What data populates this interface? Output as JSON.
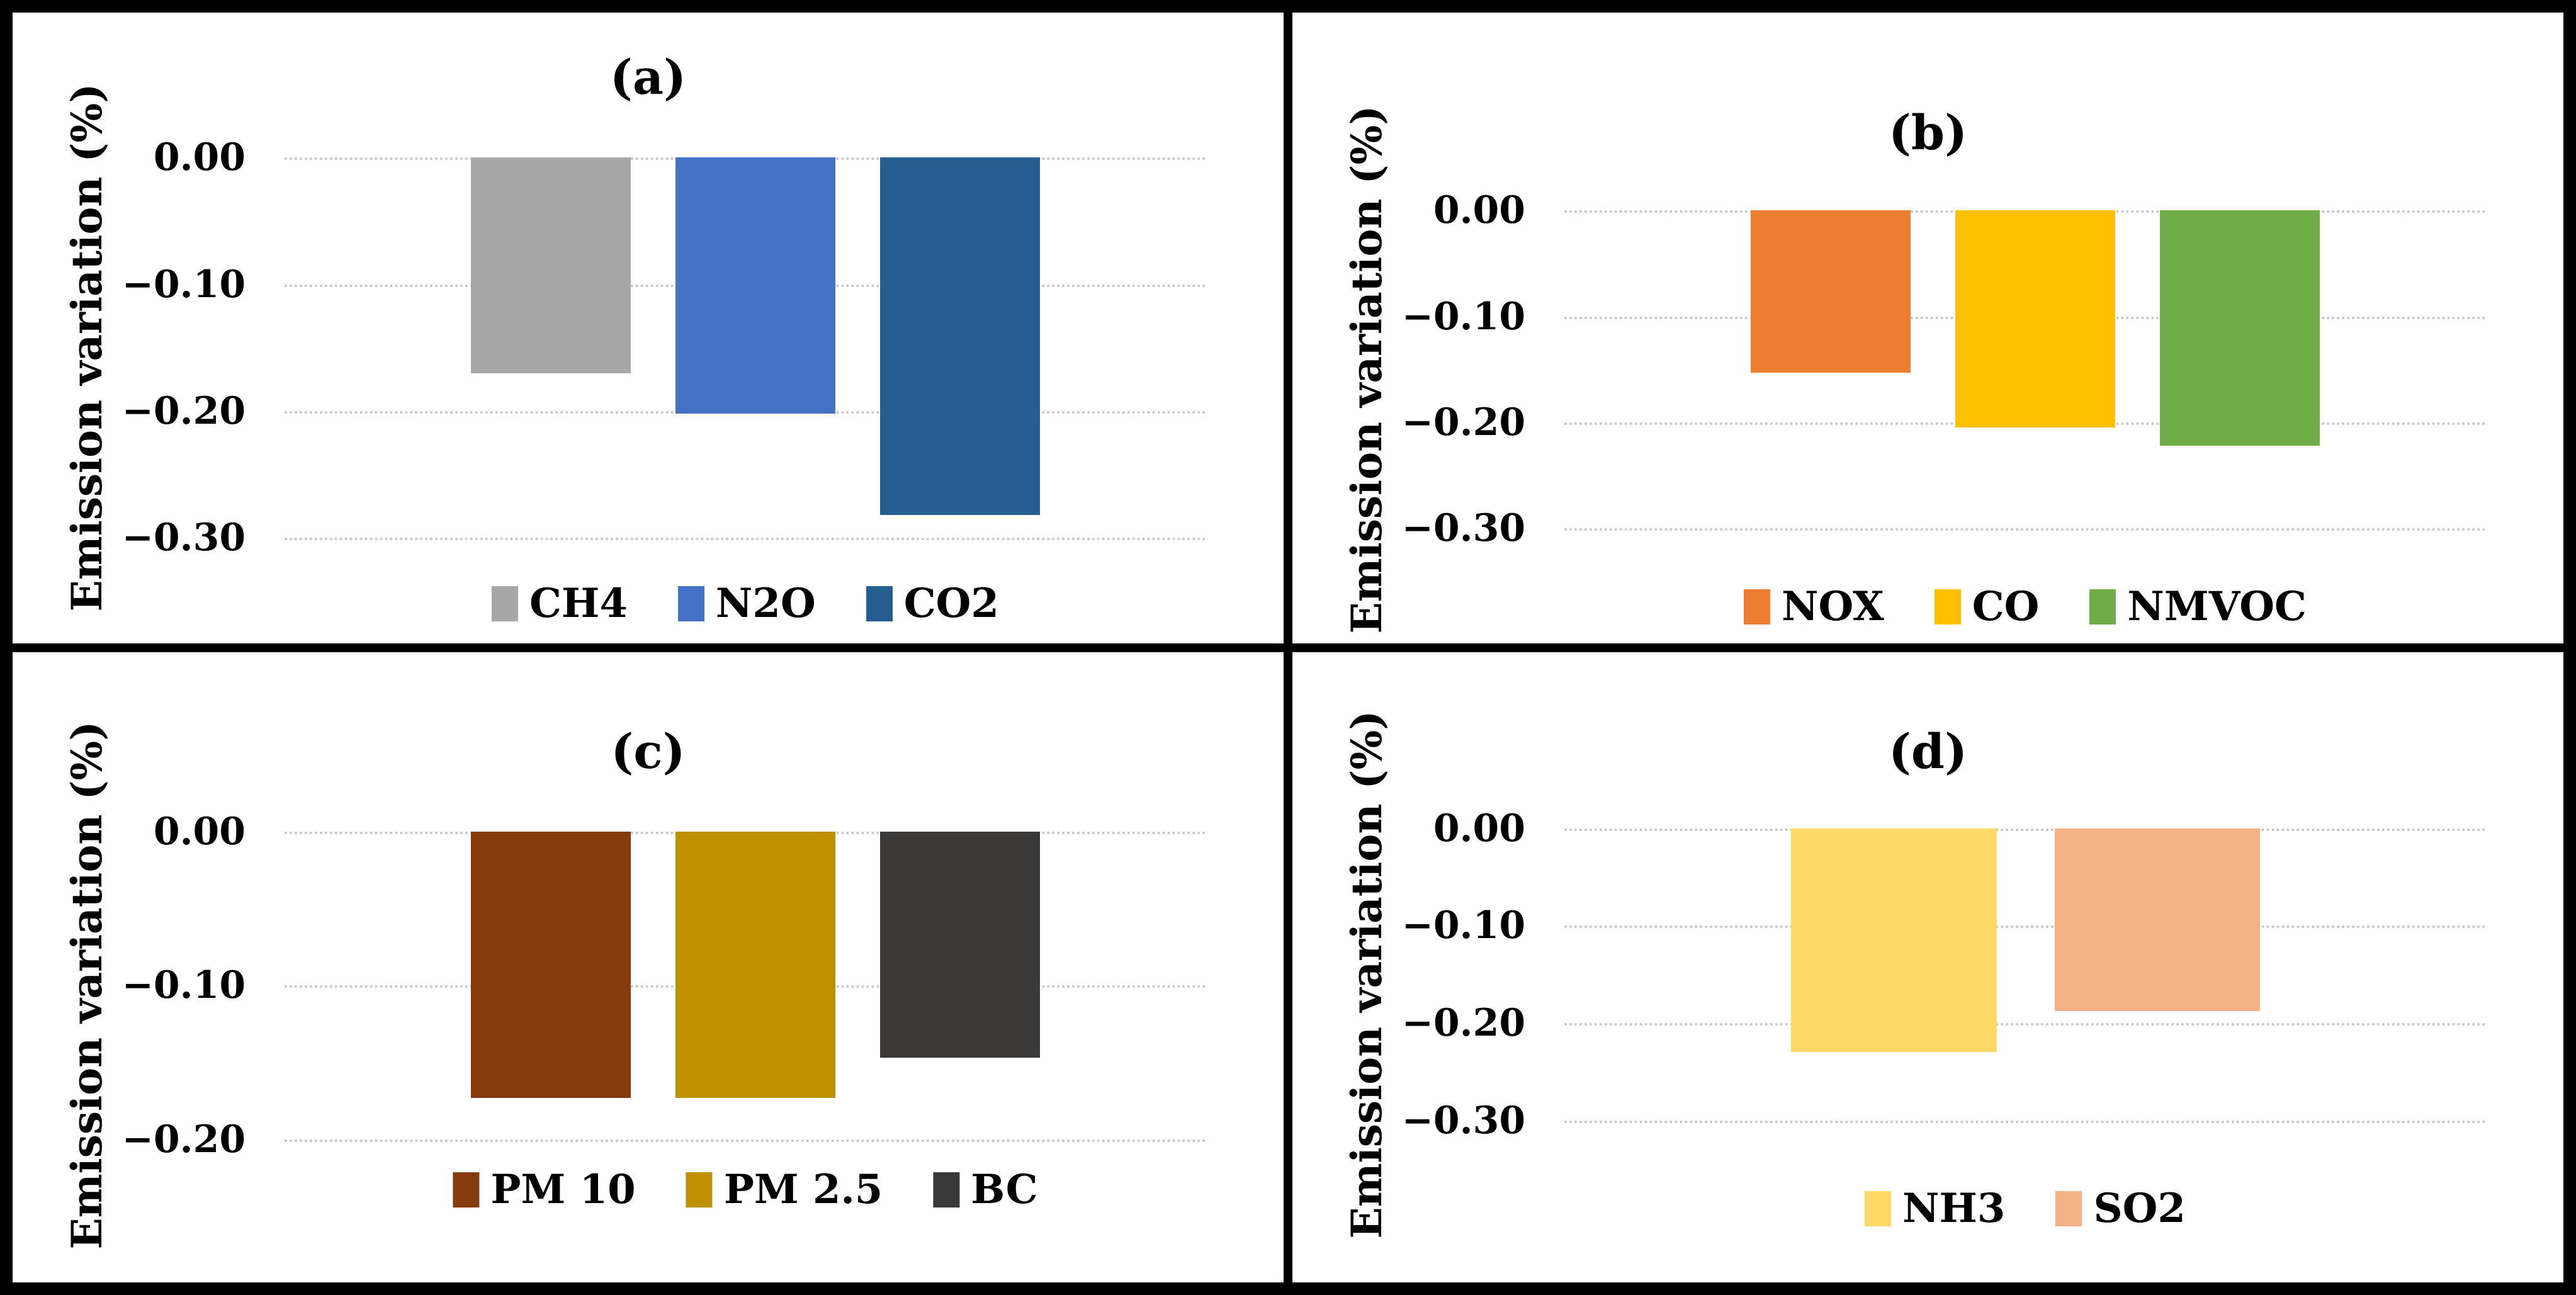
{
  "figure": {
    "ylabel_shared": "Emission variation (%)"
  },
  "chart_data": [
    {
      "type": "bar",
      "title": "(a)",
      "ylabel": "Emission variation (%)",
      "categories": [
        "CH4",
        "N2O",
        "CO2"
      ],
      "values": [
        -0.17,
        -0.202,
        -0.282
      ],
      "colors": [
        "#a7a7a7",
        "#4472c4",
        "#255e91"
      ],
      "textured": [
        true,
        false,
        false
      ],
      "ylim": [
        -0.3,
        0
      ],
      "yticks": [
        "0.00",
        "−0.10",
        "−0.20",
        "−0.30"
      ],
      "grid": true,
      "legend_position": "bottom"
    },
    {
      "type": "bar",
      "title": "(b)",
      "ylabel": "Emission variation (%)",
      "categories": [
        "NOX",
        "CO",
        "NMVOC"
      ],
      "values": [
        -0.153,
        -0.205,
        -0.222
      ],
      "colors": [
        "#ed7d31",
        "#ffc000",
        "#70ad47"
      ],
      "textured": [
        false,
        false,
        false
      ],
      "ylim": [
        -0.3,
        0
      ],
      "yticks": [
        "0.00",
        "−0.10",
        "−0.20",
        "−0.30"
      ],
      "grid": true,
      "legend_position": "bottom"
    },
    {
      "type": "bar",
      "title": "(c)",
      "ylabel": "Emission variation (%)",
      "categories": [
        "PM 10",
        "PM 2.5",
        "BC"
      ],
      "values": [
        -0.173,
        -0.173,
        -0.147
      ],
      "colors": [
        "#843c0c",
        "#bf9000",
        "#3b3838"
      ],
      "textured": [
        false,
        false,
        false
      ],
      "ylim": [
        -0.2,
        0
      ],
      "yticks": [
        "0.00",
        "−0.10",
        "−0.20"
      ],
      "grid": true,
      "legend_position": "bottom"
    },
    {
      "type": "bar",
      "title": "(d)",
      "ylabel": "Emission variation (%)",
      "categories": [
        "NH3",
        "SO2"
      ],
      "values": [
        -0.23,
        -0.188
      ],
      "colors": [
        "#ffd966",
        "#f4b183"
      ],
      "textured": [
        false,
        false
      ],
      "ylim": [
        -0.3,
        0
      ],
      "yticks": [
        "0.00",
        "−0.10",
        "−0.20",
        "−0.30"
      ],
      "grid": true,
      "legend_position": "bottom"
    }
  ]
}
